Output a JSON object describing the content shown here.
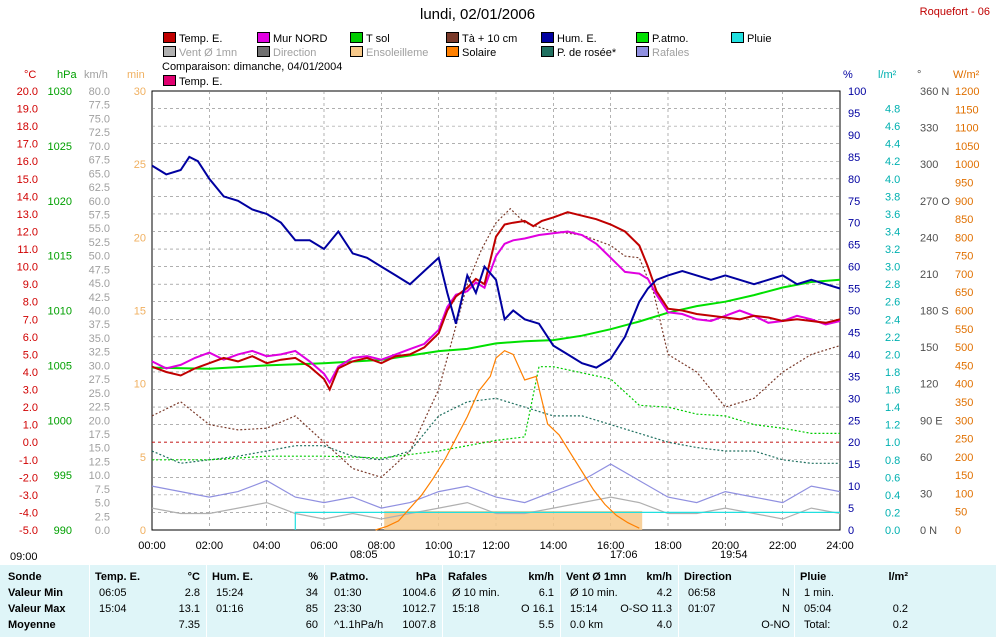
{
  "header": {
    "title": "lundi, 02/01/2006",
    "station": "Roquefort - 06",
    "comparison": "Comparaison: dimanche, 04/01/2004"
  },
  "legend": [
    {
      "label": "Temp. E.",
      "color": "#c00000"
    },
    {
      "label": "Mur NORD",
      "color": "#e000e0"
    },
    {
      "label": "T sol",
      "color": "#00cc00"
    },
    {
      "label": "Tà + 10 cm",
      "color": "#7a3a2a"
    },
    {
      "label": "Hum. E.",
      "color": "#0000a0"
    },
    {
      "label": "P.atmo.",
      "color": "#00e000"
    },
    {
      "label": "Pluie",
      "color": "#20e0e0"
    },
    {
      "label": "Vent Ø 1mn",
      "color": "#b0b0b0"
    },
    {
      "label": "Direction",
      "color": "#707070"
    },
    {
      "label": "Ensoleilleme",
      "color": "#f7c98a"
    },
    {
      "label": "Solaire",
      "color": "#ff8000"
    },
    {
      "label": "P. de rosée*",
      "color": "#207060"
    },
    {
      "label": "Rafales",
      "color": "#9090e0"
    },
    {
      "label": "Temp. E.",
      "color": "#e00070"
    }
  ],
  "axes": {
    "units": {
      "temp": "°C",
      "press": "hPa",
      "wind": "km/h",
      "min": "min",
      "hum": "%",
      "rain": "l/m²",
      "dir": "°",
      "solar": "W/m²"
    },
    "temp_ticks": [
      "20.0",
      "19.0",
      "18.0",
      "17.0",
      "16.0",
      "15.0",
      "14.0",
      "13.0",
      "12.0",
      "11.0",
      "10.0",
      "9.0",
      "8.0",
      "7.0",
      "6.0",
      "5.0",
      "4.0",
      "3.0",
      "2.0",
      "1.0",
      "0.0",
      "-1.0",
      "-2.0",
      "-3.0",
      "-4.0",
      "-5.0"
    ],
    "press_ticks": [
      "1030",
      "1025",
      "1020",
      "1015",
      "1010",
      "1005",
      "1000",
      "995",
      "990"
    ],
    "wind_ticks": [
      "80.0",
      "77.5",
      "75.0",
      "72.5",
      "70.0",
      "67.5",
      "65.0",
      "62.5",
      "60.0",
      "57.5",
      "55.0",
      "52.5",
      "50.0",
      "47.5",
      "45.0",
      "42.5",
      "40.0",
      "37.5",
      "35.0",
      "32.5",
      "30.0",
      "27.5",
      "25.0",
      "22.5",
      "20.0",
      "17.5",
      "15.0",
      "12.5",
      "10.0",
      "7.5",
      "5.0",
      "2.5",
      "0.0"
    ],
    "min_ticks": [
      "30",
      "25",
      "20",
      "15",
      "10",
      "5",
      "0"
    ],
    "hum_ticks": [
      "100",
      "95",
      "90",
      "85",
      "80",
      "75",
      "70",
      "65",
      "60",
      "55",
      "50",
      "45",
      "40",
      "35",
      "30",
      "25",
      "20",
      "15",
      "10",
      "5",
      "0"
    ],
    "rain_ticks": [
      "4.8",
      "4.6",
      "4.4",
      "4.2",
      "4.0",
      "3.8",
      "3.6",
      "3.4",
      "3.2",
      "3.0",
      "2.8",
      "2.6",
      "2.4",
      "2.2",
      "2.0",
      "1.8",
      "1.6",
      "1.4",
      "1.2",
      "1.0",
      "0.8",
      "0.6",
      "0.4",
      "0.2",
      "0.0"
    ],
    "dir_ticks": [
      "360 N",
      "330",
      "300",
      "270 O",
      "240",
      "210",
      "180 S",
      "150",
      "120",
      "90 E",
      "60",
      "30",
      "0 N"
    ],
    "solar_ticks": [
      "1200",
      "1150",
      "1100",
      "1050",
      "1000",
      "950",
      "900",
      "850",
      "800",
      "750",
      "700",
      "650",
      "600",
      "550",
      "500",
      "450",
      "400",
      "350",
      "300",
      "250",
      "200",
      "150",
      "100",
      "50",
      "0"
    ],
    "time_ticks": [
      "00:00",
      "02:00",
      "04:00",
      "06:00",
      "08:00",
      "10:00",
      "12:00",
      "14:00",
      "16:00",
      "18:00",
      "20:00",
      "22:00",
      "24:00"
    ]
  },
  "markers": {
    "sun_start": "09:00",
    "sunrise": "08:05",
    "solar_noon": "10:17",
    "sunset": "17:06",
    "moon": "19:54"
  },
  "chart_data": {
    "type": "line",
    "x_unit": "hour",
    "xlim": [
      0,
      24
    ],
    "series": [
      {
        "name": "Temp. E.",
        "axis": "temp",
        "color": "#c00000",
        "x": [
          0,
          0.5,
          1,
          1.5,
          2,
          2.5,
          3,
          3.5,
          4,
          4.5,
          5,
          5.5,
          6,
          6.2,
          6.5,
          7,
          7.5,
          8,
          8.5,
          9,
          9.5,
          10,
          10.3,
          10.6,
          11,
          11.3,
          11.6,
          12,
          12.3,
          12.6,
          13,
          13.3,
          13.6,
          14,
          14.5,
          15,
          15.5,
          16,
          16.5,
          17,
          17.3,
          17.6,
          18,
          18.5,
          19,
          19.5,
          20,
          20.5,
          21,
          21.5,
          22,
          22.5,
          23,
          23.5,
          24
        ],
        "y": [
          4.3,
          4.0,
          3.8,
          4.2,
          4.5,
          4.8,
          4.6,
          4.9,
          4.5,
          4.7,
          4.8,
          4.3,
          3.6,
          3.0,
          4.2,
          4.6,
          4.8,
          4.5,
          4.9,
          5.0,
          5.4,
          6.2,
          7.5,
          8.3,
          8.8,
          9.3,
          9.0,
          11.7,
          12.4,
          12.5,
          12.6,
          12.3,
          12.6,
          12.8,
          13.1,
          12.9,
          12.7,
          12.4,
          12.0,
          11.2,
          10.0,
          8.6,
          7.6,
          7.5,
          7.3,
          7.2,
          7.1,
          7.0,
          7.2,
          7.1,
          6.9,
          7.0,
          6.9,
          6.8,
          7.0
        ]
      },
      {
        "name": "Mur NORD",
        "axis": "temp",
        "color": "#e000e0",
        "x": [
          0,
          0.5,
          1,
          1.5,
          2,
          2.5,
          3,
          3.5,
          4,
          4.5,
          5,
          5.5,
          6,
          6.2,
          6.5,
          7,
          7.5,
          8,
          8.5,
          9,
          9.5,
          10,
          10.3,
          10.6,
          11,
          11.3,
          11.6,
          12,
          12.3,
          12.6,
          13,
          13.5,
          14,
          14.5,
          15,
          15.5,
          16,
          16.5,
          17,
          17.3,
          17.6,
          18,
          18.5,
          19,
          19.5,
          20,
          20.5,
          21,
          21.5,
          22,
          22.5,
          23,
          23.5,
          24
        ],
        "y": [
          4.6,
          4.2,
          4.4,
          4.8,
          5.1,
          4.7,
          5.0,
          5.2,
          4.9,
          5.0,
          5.2,
          4.6,
          3.9,
          3.4,
          4.3,
          4.8,
          4.9,
          4.7,
          5.0,
          5.3,
          5.6,
          6.4,
          7.7,
          8.4,
          8.6,
          9.1,
          8.8,
          10.6,
          11.3,
          11.5,
          11.6,
          11.8,
          11.9,
          12.0,
          11.8,
          11.3,
          10.5,
          9.7,
          9.6,
          9.3,
          8.4,
          7.4,
          7.3,
          7.0,
          6.9,
          7.2,
          7.5,
          7.2,
          6.8,
          6.9,
          7.2,
          7.0,
          6.7,
          6.9
        ]
      },
      {
        "name": "Hum. E.",
        "axis": "hum",
        "color": "#0000a0",
        "x": [
          0,
          0.5,
          1,
          1.3,
          1.6,
          2,
          2.5,
          3,
          3.5,
          4,
          4.5,
          5,
          5.5,
          6,
          6.5,
          7,
          7.5,
          8,
          8.5,
          9,
          9.5,
          10,
          10.3,
          10.6,
          11,
          11.3,
          11.6,
          12,
          12.3,
          12.6,
          13,
          13.5,
          14,
          14.5,
          15,
          15.5,
          16,
          16.5,
          17,
          17.3,
          17.6,
          18,
          18.5,
          19,
          19.5,
          20,
          20.5,
          21,
          21.5,
          22,
          22.5,
          23,
          23.5,
          24
        ],
        "y": [
          83,
          81,
          82,
          85,
          84,
          80,
          76,
          75,
          73,
          72,
          70,
          66,
          66,
          64,
          68,
          63,
          62,
          60,
          58,
          56,
          59,
          62,
          54,
          47,
          58,
          54,
          60,
          57,
          48,
          50,
          48,
          47,
          42,
          40,
          38,
          37,
          39,
          44,
          52,
          55,
          57,
          58,
          59,
          58,
          57,
          58,
          57,
          56,
          57,
          58,
          56,
          57,
          56,
          55
        ]
      },
      {
        "name": "P.atmo.",
        "axis": "press",
        "color": "#00e000",
        "x": [
          0,
          2,
          4,
          6,
          8,
          9,
          10,
          11,
          12,
          13,
          14,
          15,
          16,
          17,
          18,
          19,
          20,
          21,
          22,
          23,
          24
        ],
        "y": [
          1004.8,
          1004.7,
          1005.0,
          1005.2,
          1005.5,
          1005.9,
          1006.3,
          1006.5,
          1007.0,
          1007.2,
          1007.3,
          1007.7,
          1008.3,
          1009.0,
          1009.8,
          1010.4,
          1010.8,
          1011.4,
          1012.1,
          1012.6,
          1012.8
        ]
      },
      {
        "name": "Tà + 10 cm",
        "axis": "temp",
        "color": "#7a3a2a",
        "x": [
          0,
          1,
          2,
          3,
          4,
          5,
          6,
          7,
          8,
          9,
          10,
          10.5,
          11,
          11.5,
          12,
          12.5,
          13,
          14,
          15,
          16,
          16.5,
          17,
          17.5,
          18,
          19,
          20,
          21,
          22,
          23,
          24
        ],
        "y": [
          1.5,
          2.3,
          1.0,
          0.7,
          0.8,
          1.5,
          0.0,
          -1.5,
          -2.0,
          -0.5,
          3.0,
          6.0,
          9.0,
          11.0,
          12.5,
          13.3,
          12.5,
          12.0,
          11.8,
          11.2,
          10.6,
          10.5,
          8.5,
          5.0,
          4.0,
          2.0,
          2.5,
          4.0,
          5.0,
          5.5
        ]
      },
      {
        "name": "P. de rosée*",
        "axis": "temp",
        "color": "#207060",
        "x": [
          0,
          1,
          2,
          3,
          4,
          5,
          6,
          7,
          8,
          9,
          10,
          11,
          12,
          13,
          14,
          15,
          16,
          17,
          18,
          19,
          20,
          21,
          22,
          23,
          24
        ],
        "y": [
          -0.5,
          -1.2,
          -1.0,
          -0.8,
          -0.5,
          -0.2,
          -0.2,
          -0.8,
          -1.0,
          -0.5,
          1.5,
          2.3,
          2.5,
          2.0,
          1.5,
          1.5,
          1.0,
          0.5,
          0.0,
          -0.3,
          -0.5,
          -0.5,
          -1.0,
          -1.2,
          -1.2
        ]
      },
      {
        "name": "T sol",
        "axis": "temp",
        "color": "#00cc00",
        "x": [
          0,
          2,
          4,
          6,
          8,
          10,
          12,
          13,
          13.5,
          14,
          16,
          17,
          18,
          19,
          20,
          21,
          22,
          23,
          24
        ],
        "y": [
          -1.0,
          -1.0,
          -0.8,
          -0.8,
          -0.9,
          -0.5,
          0.1,
          0.3,
          4.3,
          4.3,
          3.6,
          2.1,
          2.0,
          1.6,
          1.5,
          1.0,
          0.8,
          0.5,
          0.5
        ]
      },
      {
        "name": "Solaire",
        "axis": "solar",
        "color": "#ff8000",
        "x": [
          7.8,
          8.2,
          8.6,
          9,
          9.4,
          9.8,
          10.2,
          10.6,
          11,
          11.4,
          11.8,
          12,
          12.3,
          12.6,
          13,
          13.4,
          13.8,
          14.2,
          14.6,
          15,
          15.4,
          15.8,
          16.2,
          16.6,
          17
        ],
        "y": [
          0,
          10,
          25,
          60,
          95,
          140,
          190,
          250,
          310,
          380,
          420,
          470,
          490,
          480,
          410,
          420,
          290,
          260,
          210,
          160,
          110,
          70,
          40,
          20,
          5
        ]
      },
      {
        "name": "Ensoleilleme",
        "axis": "min",
        "color": "#f7c98a",
        "x": [
          8.1,
          9.9,
          10.0,
          17.1
        ],
        "y": [
          1.0,
          1.0,
          1.3,
          1.0
        ]
      },
      {
        "name": "Pluie",
        "axis": "rain",
        "color": "#20e0e0",
        "x": [
          5.0,
          5.0,
          24.0
        ],
        "y": [
          0.0,
          0.2,
          0.2
        ]
      },
      {
        "name": "Rafales",
        "axis": "wind",
        "color": "#9090e0",
        "x": [
          0,
          1,
          2,
          3,
          4,
          5,
          6,
          7,
          8,
          9,
          10,
          11,
          12,
          13,
          14,
          15,
          16,
          17,
          18,
          19,
          20,
          21,
          22,
          23,
          24
        ],
        "y": [
          8,
          7,
          6,
          7,
          9,
          6,
          5,
          6,
          4,
          5,
          7,
          8,
          6,
          5,
          7,
          9,
          12,
          9,
          6,
          5,
          7,
          6,
          5,
          8,
          7
        ]
      },
      {
        "name": "Vent Ø 1mn",
        "axis": "wind",
        "color": "#b0b0b0",
        "x": [
          0,
          1,
          2,
          3,
          4,
          5,
          6,
          7,
          8,
          9,
          10,
          11,
          12,
          13,
          14,
          15,
          16,
          17,
          18,
          19,
          20,
          21,
          22,
          23,
          24
        ],
        "y": [
          4,
          3,
          3,
          4,
          5,
          3,
          2,
          3,
          2,
          3,
          4,
          5,
          3,
          3,
          4,
          5,
          6,
          5,
          3,
          3,
          4,
          3,
          2,
          4,
          3
        ]
      }
    ]
  },
  "stats": {
    "headers": [
      {
        "label": "Sonde"
      },
      {
        "label": "Temp. E.",
        "unit": "°C"
      },
      {
        "label": "Hum. E.",
        "unit": "%"
      },
      {
        "label": "P.atmo.",
        "unit": "hPa"
      },
      {
        "label": "Rafales",
        "unit": "km/h"
      },
      {
        "label": "Vent Ø 1mn",
        "unit": "km/h"
      },
      {
        "label": "Direction"
      },
      {
        "label": "Pluie",
        "unit": "l/m²"
      }
    ],
    "rows": [
      {
        "name": "Valeur Min",
        "temp": [
          "06:05",
          "2.8"
        ],
        "hum": [
          "15:24",
          "34"
        ],
        "press": [
          "01:30",
          "1004.6"
        ],
        "gust": [
          "Ø 10 min.",
          "6.1"
        ],
        "wind": [
          "Ø 10 min.",
          "4.2"
        ],
        "dir": [
          "06:58",
          "N"
        ],
        "rain": [
          "1 min.",
          ""
        ]
      },
      {
        "name": "Valeur Max",
        "temp": [
          "15:04",
          "13.1"
        ],
        "hum": [
          "01:16",
          "85"
        ],
        "press": [
          "23:30",
          "1012.7"
        ],
        "gust": [
          "15:18",
          "O 16.1"
        ],
        "wind": [
          "15:14",
          "O-SO 11.3"
        ],
        "dir": [
          "01:07",
          "N"
        ],
        "rain": [
          "05:04",
          "0.2"
        ]
      },
      {
        "name": "Moyenne",
        "temp": [
          "",
          "7.35"
        ],
        "hum": [
          "",
          "60"
        ],
        "press": [
          "^1.1hPa/h",
          "1007.8"
        ],
        "gust": [
          "",
          "5.5"
        ],
        "wind": [
          "0.0 km",
          "4.0"
        ],
        "dir": [
          "",
          "O-NO"
        ],
        "rain": [
          "Total:",
          "0.2"
        ]
      }
    ]
  }
}
